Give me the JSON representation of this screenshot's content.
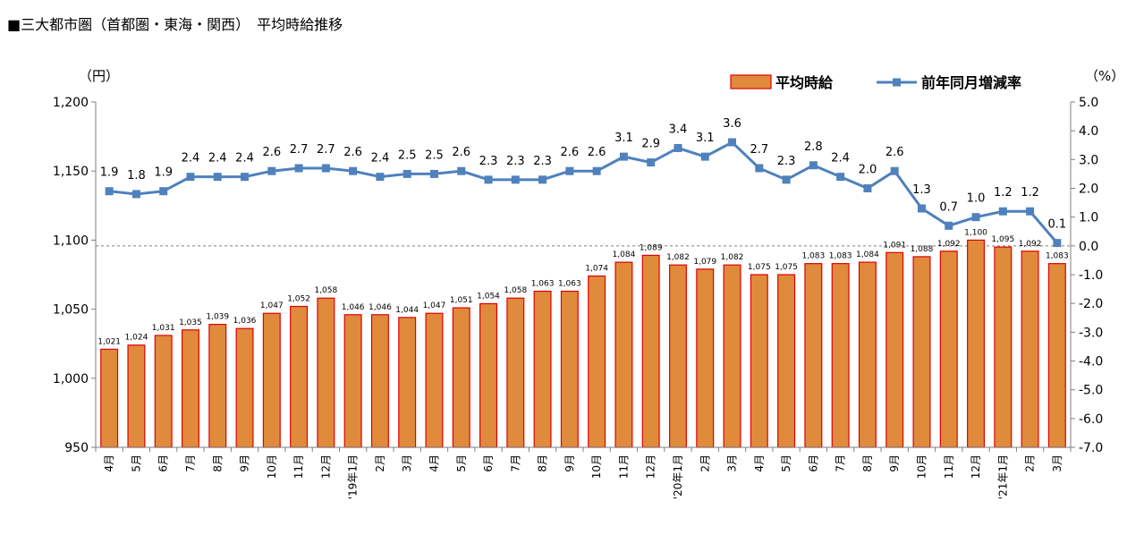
{
  "title": "■三大都市圏（首都圏・東海・関西）　平均時給推移",
  "chart_data": {
    "type": "bar+line",
    "title": "■三大都市圏（首都圏・東海・関西）　平均時給推移",
    "categories": [
      "4月",
      "5月",
      "6月",
      "7月",
      "8月",
      "9月",
      "10月",
      "11月",
      "12月",
      "'19年1月",
      "2月",
      "3月",
      "4月",
      "5月",
      "6月",
      "7月",
      "8月",
      "9月",
      "10月",
      "11月",
      "12月",
      "'20年1月",
      "2月",
      "3月",
      "4月",
      "5月",
      "6月",
      "7月",
      "8月",
      "9月",
      "10月",
      "11月",
      "12月",
      "'21年1月",
      "2月",
      "3月"
    ],
    "series": [
      {
        "name": "平均時給",
        "axis": "left",
        "type": "bar",
        "color": "#E08A3C",
        "edge_color": "#E00000",
        "values": [
          1021,
          1024,
          1031,
          1035,
          1039,
          1036,
          1047,
          1052,
          1058,
          1046,
          1046,
          1044,
          1047,
          1051,
          1054,
          1058,
          1063,
          1063,
          1074,
          1084,
          1089,
          1082,
          1079,
          1082,
          1075,
          1075,
          1083,
          1083,
          1084,
          1091,
          1088,
          1092,
          1100,
          1095,
          1092,
          1083
        ],
        "labels": [
          "1,021",
          "1,024",
          "1,031",
          "1,035",
          "1,039",
          "1,036",
          "1,047",
          "1,052",
          "1,058",
          "1,046",
          "1,046",
          "1,044",
          "1,047",
          "1,051",
          "1,054",
          "1,058",
          "1,063",
          "1,063",
          "1,074",
          "1,084",
          "1,089",
          "1,082",
          "1,079",
          "1,082",
          "1,075",
          "1,075",
          "1,083",
          "1,083",
          "1,084",
          "1,091",
          "1,088",
          "1,092",
          "1,100",
          "1,095",
          "1,092",
          "1,083"
        ]
      },
      {
        "name": "前年同月増減率",
        "axis": "right",
        "type": "line",
        "color": "#4F81BD",
        "values": [
          1.9,
          1.8,
          1.9,
          2.4,
          2.4,
          2.4,
          2.6,
          2.7,
          2.7,
          2.6,
          2.4,
          2.5,
          2.5,
          2.6,
          2.3,
          2.3,
          2.3,
          2.6,
          2.6,
          3.1,
          2.9,
          3.4,
          3.1,
          3.6,
          2.7,
          2.3,
          2.8,
          2.4,
          2.0,
          2.6,
          1.3,
          0.7,
          1.0,
          1.2,
          1.2,
          0.1
        ],
        "labels": [
          "1.9",
          "1.8",
          "1.9",
          "2.4",
          "2.4",
          "2.4",
          "2.6",
          "2.7",
          "2.7",
          "2.6",
          "2.4",
          "2.5",
          "2.5",
          "2.6",
          "2.3",
          "2.3",
          "2.3",
          "2.6",
          "2.6",
          "3.1",
          "2.9",
          "3.4",
          "3.1",
          "3.6",
          "2.7",
          "2.3",
          "2.8",
          "2.4",
          "2.0",
          "2.6",
          "1.3",
          "0.7",
          "1.0",
          "1.2",
          "1.2",
          "0.1"
        ]
      }
    ],
    "y_left": {
      "unit_label": "（円）",
      "ylim": [
        950,
        1200
      ],
      "ticks": [
        950,
        1000,
        1050,
        1100,
        1150,
        1200
      ],
      "tick_labels": [
        "950",
        "1,000",
        "1,050",
        "1,100",
        "1,150",
        "1,200"
      ]
    },
    "y_right": {
      "unit_label": "（%）",
      "ylim": [
        -7,
        5
      ],
      "ticks": [
        5,
        4,
        3,
        2,
        1,
        0,
        -1,
        -2,
        -3,
        -4,
        -5,
        -6,
        -7
      ],
      "tick_labels": [
        "5.0",
        "4.0",
        "3.0",
        "2.0",
        "1.0",
        "0.0",
        "-1.0",
        "-2.0",
        "-3.0",
        "-4.0",
        "-5.0",
        "-6.0",
        "-7.0"
      ]
    },
    "zero_reference_line": "dashed at right-axis 0.0",
    "legend_position": "top-right",
    "grid": false
  }
}
